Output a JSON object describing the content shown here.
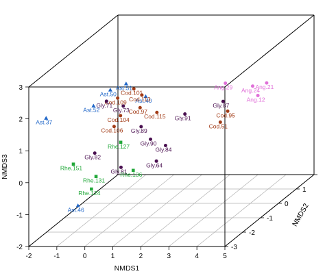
{
  "chart_data": {
    "type": "scatter",
    "projection": "3d",
    "xlabel": "NMDS1",
    "ylabel": "NMDS2",
    "zlabel": "NMDS3",
    "xlim": [
      -2,
      5
    ],
    "ylim": [
      -3,
      2
    ],
    "zlim": [
      -2,
      3
    ],
    "x_ticks": [
      -2,
      -1,
      0,
      1,
      2,
      3,
      4,
      5
    ],
    "y_ticks": [
      -3,
      -2,
      -1,
      0,
      1,
      2
    ],
    "z_ticks": [
      -2,
      -1,
      0,
      1,
      2,
      3
    ],
    "grid": "floor",
    "legend": "none",
    "colors": {
      "Ang": "#e070d8",
      "Ast": "#1f66c8",
      "Cod": "#a23b16",
      "Gly": "#4a1050",
      "Rhe": "#22a83a"
    },
    "series": [
      {
        "group": "Ang",
        "marker": "dot",
        "color": "#e070d8",
        "points": [
          {
            "label": "Ang.31",
            "x": 1.7,
            "y": 1.5,
            "z": 4.1
          },
          {
            "label": "Ang.29",
            "x": 3.3,
            "y": -0.3,
            "z": 1.9
          },
          {
            "label": "Ang.24",
            "x": 4.4,
            "y": -0.5,
            "z": 1.9
          },
          {
            "label": "Ang.21",
            "x": 4.9,
            "y": -0.5,
            "z": 2.0
          },
          {
            "label": "Ang.12",
            "x": 4.65,
            "y": -0.6,
            "z": 1.65
          }
        ]
      },
      {
        "group": "Ast",
        "marker": "triangle",
        "color": "#1f66c8",
        "points": [
          {
            "label": "Ast.51",
            "x": 0.2,
            "y": -1.0,
            "z": 2.2
          },
          {
            "label": "Ast.50",
            "x": -0.3,
            "y": -1.1,
            "z": 2.05
          },
          {
            "label": "Ast.52",
            "x": -0.9,
            "y": -1.1,
            "z": 1.55
          },
          {
            "label": "Ast.37",
            "x": -2.4,
            "y": -1.4,
            "z": 1.3
          },
          {
            "label": "Ast.40",
            "x": 0.9,
            "y": -1.0,
            "z": 1.8
          },
          {
            "label": "Ast.46",
            "x": -0.5,
            "y": -2.6,
            "z": -0.9
          }
        ]
      },
      {
        "group": "Cod",
        "marker": "dot",
        "color": "#a23b16",
        "points": [
          {
            "label": "Cod.101",
            "x": 0.35,
            "y": -0.8,
            "z": 1.95
          },
          {
            "label": "Cod.113",
            "x": 0.7,
            "y": -0.9,
            "z": 1.8
          },
          {
            "label": "Cod.109",
            "x": -0.1,
            "y": -1.0,
            "z": 1.75
          },
          {
            "label": "Cod.97",
            "x": 0.7,
            "y": -1.0,
            "z": 1.45
          },
          {
            "label": "Cod.115",
            "x": 1.3,
            "y": -1.0,
            "z": 1.3
          },
          {
            "label": "Cod.104",
            "x": 0.0,
            "y": -1.0,
            "z": 1.2
          },
          {
            "label": "Cod.106",
            "x": -0.1,
            "y": -1.2,
            "z": 0.95
          },
          {
            "label": "Cod.95",
            "x": 3.7,
            "y": -0.8,
            "z": 1.25
          },
          {
            "label": "Cod.51",
            "x": 3.5,
            "y": -0.9,
            "z": 0.95
          }
        ]
      },
      {
        "group": "Gly",
        "marker": "dot",
        "color": "#4a1050",
        "points": [
          {
            "label": "Gly.71",
            "x": -0.5,
            "y": -1.0,
            "z": 1.65
          },
          {
            "label": "Gly.73",
            "x": 0.1,
            "y": -1.0,
            "z": 1.5
          },
          {
            "label": "Gly.91",
            "x": 2.3,
            "y": -1.0,
            "z": 1.25
          },
          {
            "label": "Gly.87",
            "x": 3.6,
            "y": -0.9,
            "z": 1.6
          },
          {
            "label": "Gly.89",
            "x": 0.8,
            "y": -1.1,
            "z": 0.9
          },
          {
            "label": "Gly.90",
            "x": 1.2,
            "y": -1.2,
            "z": 0.55
          },
          {
            "label": "Gly.84",
            "x": 1.8,
            "y": -1.3,
            "z": 0.4
          },
          {
            "label": "Gly.82",
            "x": -0.6,
            "y": -1.5,
            "z": 0.25
          },
          {
            "label": "Gly.64",
            "x": 1.6,
            "y": -1.5,
            "z": 0.0
          },
          {
            "label": "Gly.81",
            "x": 0.4,
            "y": -1.6,
            "z": -0.15
          }
        ]
      },
      {
        "group": "Rhe",
        "marker": "square",
        "color": "#22a83a",
        "points": [
          {
            "label": "Rhe.127",
            "x": 0.2,
            "y": -1.3,
            "z": 0.5
          },
          {
            "label": "Rhe.151",
            "x": -1.3,
            "y": -1.6,
            "z": -0.05
          },
          {
            "label": "Rhe.136",
            "x": 0.9,
            "y": -1.7,
            "z": -0.2
          },
          {
            "label": "Rhe.131",
            "x": -0.3,
            "y": -1.9,
            "z": -0.3
          },
          {
            "label": "Rhe.124",
            "x": -0.4,
            "y": -2.0,
            "z": -0.65
          }
        ]
      }
    ]
  }
}
